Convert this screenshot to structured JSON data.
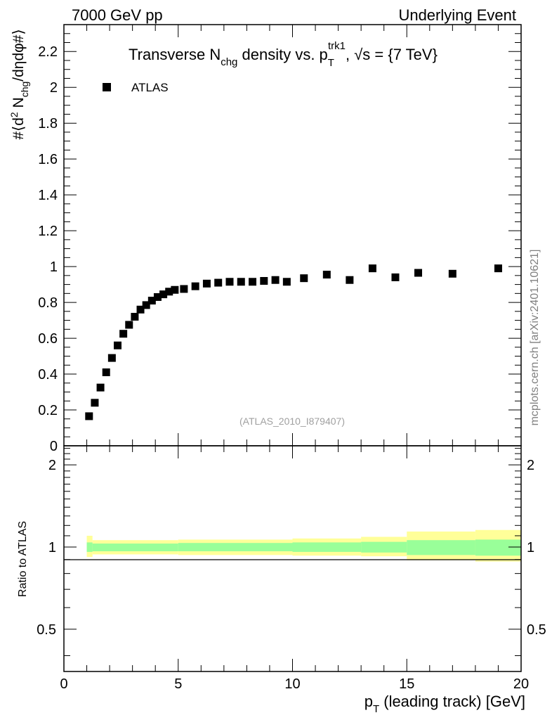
{
  "header": {
    "left": "7000 GeV pp",
    "right": "Underlying Event"
  },
  "chart_data": {
    "type": "scatter",
    "title": {
      "pre": "Transverse N",
      "sub": "chg",
      "mid": " density vs. p",
      "p_sub": "T",
      "p_sup": "trk1",
      "post": ", √s = {7 TeV}"
    },
    "ylabel": {
      "pre": "#⟨d",
      "sup": "2",
      "mid": " N",
      "sub": "chg",
      "post": "/dηdφ#⟩"
    },
    "xlabel": {
      "pre": "p",
      "sub": "T",
      "post": " (leading track) [GeV]"
    },
    "ratio_ylabel": "Ratio to ATLAS",
    "analysis_id": "(ATLAS_2010_I879407)",
    "watermark": "mcplots.cern.ch [arXiv:2401.10621]",
    "legend": {
      "label": "ATLAS",
      "placement": "top-left"
    },
    "xlim": [
      0,
      20
    ],
    "ylim": [
      0,
      2.35
    ],
    "ratio_ylim": [
      0.35,
      2.35
    ],
    "x_ticks": [
      "0",
      "5",
      "10",
      "15",
      "20"
    ],
    "y_ticks": [
      "0",
      "0.2",
      "0.4",
      "0.6",
      "0.8",
      "1",
      "1.2",
      "1.4",
      "1.6",
      "1.8",
      "2",
      "2.2"
    ],
    "ratio_y_ticks": [
      "0.5",
      "1",
      "2"
    ],
    "series": [
      {
        "name": "ATLAS",
        "x": [
          1.1,
          1.35,
          1.6,
          1.85,
          2.1,
          2.35,
          2.6,
          2.85,
          3.1,
          3.35,
          3.6,
          3.85,
          4.1,
          4.35,
          4.6,
          4.85,
          5.25,
          5.75,
          6.25,
          6.75,
          7.25,
          7.75,
          8.25,
          8.75,
          9.25,
          9.75,
          10.5,
          11.5,
          12.5,
          13.5,
          14.5,
          15.5,
          17.0,
          19.0
        ],
        "y": [
          0.165,
          0.24,
          0.325,
          0.41,
          0.49,
          0.56,
          0.625,
          0.675,
          0.72,
          0.76,
          0.785,
          0.81,
          0.83,
          0.845,
          0.86,
          0.87,
          0.875,
          0.89,
          0.905,
          0.91,
          0.915,
          0.915,
          0.915,
          0.92,
          0.925,
          0.915,
          0.935,
          0.955,
          0.925,
          0.99,
          0.94,
          0.965,
          0.96,
          0.99
        ]
      }
    ],
    "ratio_bands": [
      {
        "x0": 1.0,
        "x1": 1.25,
        "green": [
          0.96,
          1.04
        ],
        "yellow": [
          0.92,
          1.1
        ]
      },
      {
        "x0": 1.25,
        "x1": 5.0,
        "green": [
          0.965,
          1.03
        ],
        "yellow": [
          0.94,
          1.06
        ]
      },
      {
        "x0": 5.0,
        "x1": 10.0,
        "green": [
          0.965,
          1.035
        ],
        "yellow": [
          0.935,
          1.065
        ]
      },
      {
        "x0": 10.0,
        "x1": 13.0,
        "green": [
          0.96,
          1.04
        ],
        "yellow": [
          0.93,
          1.075
        ]
      },
      {
        "x0": 13.0,
        "x1": 15.0,
        "green": [
          0.955,
          1.045
        ],
        "yellow": [
          0.925,
          1.09
        ]
      },
      {
        "x0": 15.0,
        "x1": 18.0,
        "green": [
          0.935,
          1.06
        ],
        "yellow": [
          0.895,
          1.14
        ]
      },
      {
        "x0": 18.0,
        "x1": 20.0,
        "green": [
          0.93,
          1.065
        ],
        "yellow": [
          0.885,
          1.155
        ]
      }
    ],
    "colors": {
      "marker": "#000000",
      "band_green": "#99ff99",
      "band_yellow": "#ffff99",
      "watermark": "#808080",
      "analysis_id": "#a0a0a0"
    }
  }
}
